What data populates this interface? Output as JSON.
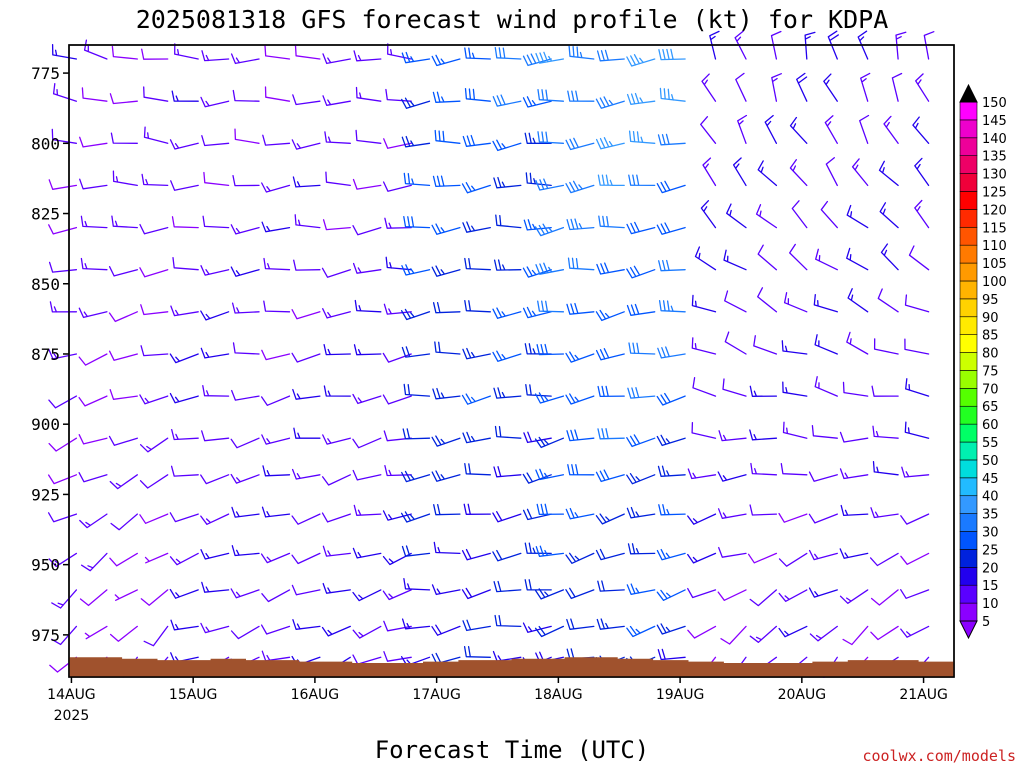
{
  "chart_data": {
    "type": "wind-barb-timeseries",
    "title": "2025081318 GFS forecast wind profile (kt) for KDPA",
    "xlabel": "Forecast Time (UTC)",
    "credit": "coolwx.com/models",
    "yaxis": {
      "label": "",
      "inverted": true,
      "ylim": [
        765,
        990
      ],
      "ticks": [
        775,
        800,
        825,
        850,
        875,
        900,
        925,
        950,
        975
      ]
    },
    "xaxis": {
      "ticks": [
        {
          "day": 0,
          "label": "14AUG",
          "sublabel": "2025"
        },
        {
          "day": 1,
          "label": "15AUG",
          "sublabel": ""
        },
        {
          "day": 2,
          "label": "16AUG",
          "sublabel": ""
        },
        {
          "day": 3,
          "label": "17AUG",
          "sublabel": ""
        },
        {
          "day": 4,
          "label": "18AUG",
          "sublabel": ""
        },
        {
          "day": 5,
          "label": "19AUG",
          "sublabel": ""
        },
        {
          "day": 6,
          "label": "20AUG",
          "sublabel": ""
        },
        {
          "day": 7,
          "label": "21AUG",
          "sublabel": ""
        }
      ],
      "xlim_days": [
        -0.02,
        7.25
      ]
    },
    "colorbar": {
      "units": "kt",
      "levels": [
        5,
        10,
        15,
        20,
        25,
        30,
        35,
        40,
        45,
        50,
        55,
        60,
        65,
        70,
        75,
        80,
        85,
        90,
        95,
        100,
        105,
        110,
        115,
        120,
        125,
        130,
        135,
        140,
        145,
        150
      ],
      "colors": [
        "#8b00ff",
        "#5a00ff",
        "#2200ee",
        "#0022dd",
        "#0055ff",
        "#1a7aff",
        "#3399ff",
        "#22bbff",
        "#00dddd",
        "#00f0b0",
        "#00ff66",
        "#22ff22",
        "#55ff00",
        "#99ff00",
        "#ccff00",
        "#ffff00",
        "#ffea00",
        "#ffd200",
        "#ffb400",
        "#ff9a00",
        "#ff7a00",
        "#ff5500",
        "#ff2a00",
        "#ff0000",
        "#f0003a",
        "#ee0066",
        "#ee0099",
        "#ee00cc",
        "#ff00ff",
        "#000000"
      ]
    },
    "barb_levels_mb": [
      770,
      785,
      800,
      815,
      830,
      845,
      860,
      875,
      890,
      905,
      918,
      932,
      946,
      959,
      972,
      983
    ],
    "time_step_hours": 6,
    "surface_pressure_mb": [
      983,
      983,
      983,
      983.5,
      983.5,
      984,
      984,
      984,
      983.5,
      983.5,
      984,
      984,
      984,
      984.5,
      984.5,
      984.5,
      985,
      985,
      985,
      985,
      984.5,
      984.5,
      984,
      984,
      984,
      983.5,
      983.5,
      983.5,
      983,
      983,
      983,
      983.5,
      983.5,
      984,
      984,
      984.5,
      984.5,
      985,
      985,
      985,
      985,
      985,
      984.5,
      984.5,
      984,
      984,
      984,
      984,
      984.5,
      984.5
    ],
    "wind_regimes": [
      {
        "from_day": 0.0,
        "to_day": 0.95,
        "upper_dir_deg": 280,
        "upper_speed_kt": 12,
        "lower_dir_deg": 225,
        "lower_speed_kt": 10
      },
      {
        "from_day": 1.0,
        "to_day": 2.9,
        "upper_dir_deg": 270,
        "upper_speed_kt": 12,
        "lower_dir_deg": 250,
        "lower_speed_kt": 14
      },
      {
        "from_day": 2.9,
        "to_day": 4.0,
        "upper_dir_deg": 265,
        "upper_speed_kt": 28,
        "lower_dir_deg": 260,
        "lower_speed_kt": 18
      },
      {
        "from_day": 4.0,
        "to_day": 5.25,
        "upper_dir_deg": 265,
        "upper_speed_kt": 35,
        "lower_dir_deg": 255,
        "lower_speed_kt": 22
      },
      {
        "from_day": 5.25,
        "to_day": 7.25,
        "upper_dir_deg": 345,
        "upper_speed_kt": 15,
        "lower_dir_deg": 225,
        "lower_speed_kt": 12
      }
    ]
  }
}
